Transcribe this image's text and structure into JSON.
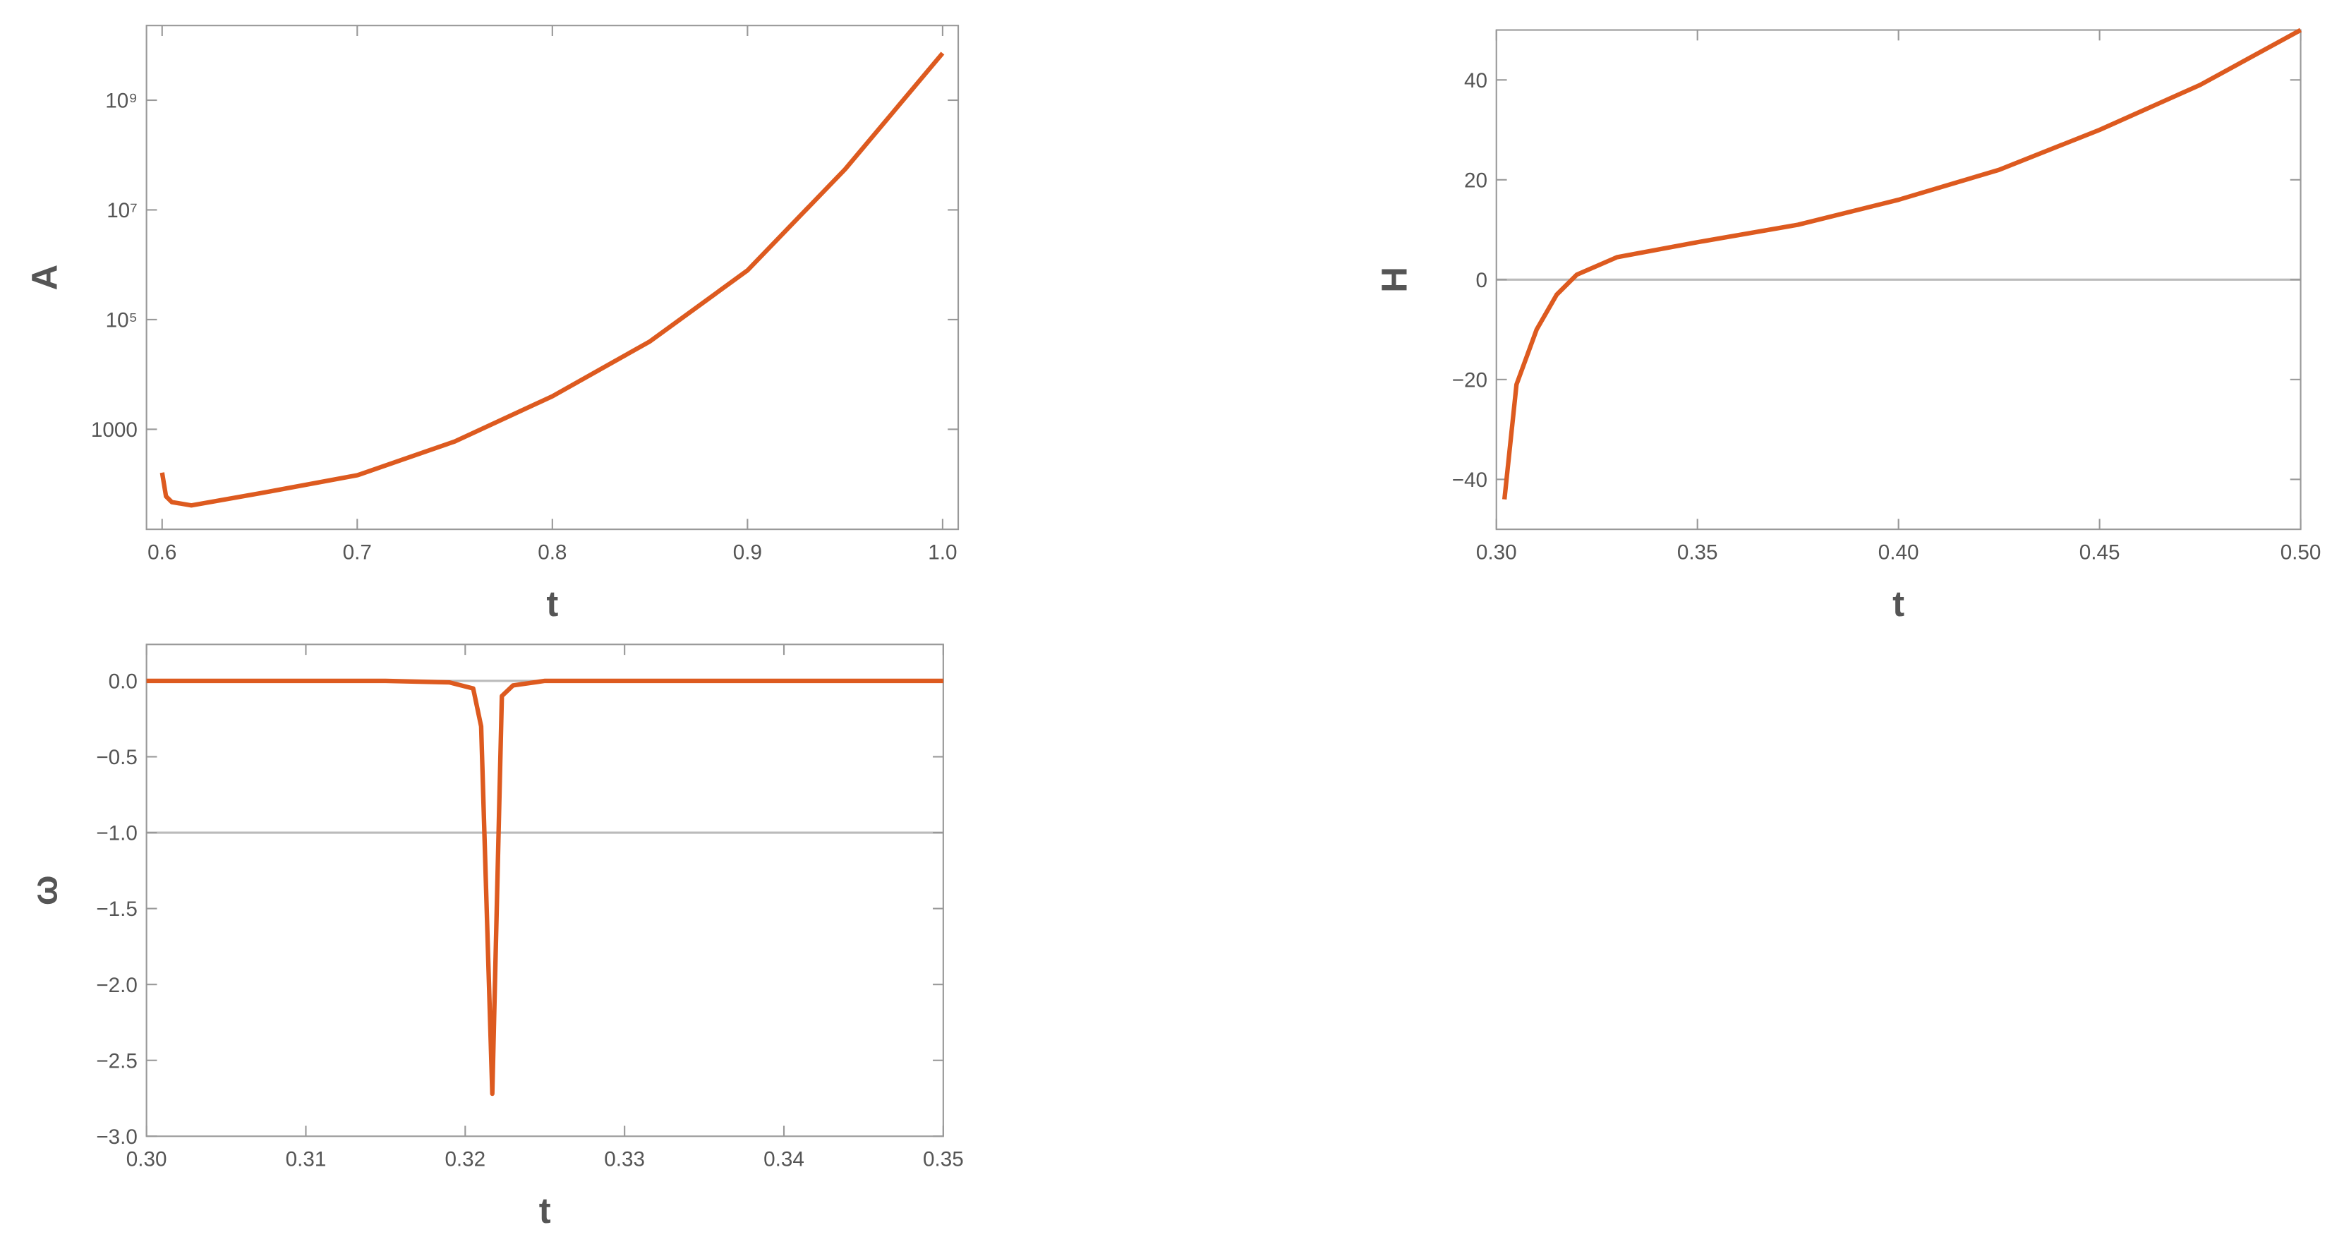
{
  "chart_data": [
    {
      "type": "line",
      "ylabel": "A",
      "xlabel": "t",
      "log_y": true,
      "color": "#dd5a1f",
      "xlim": [
        0.592,
        1.008
      ],
      "ylim": [
        15,
        23000000000
      ],
      "xticks": [
        {
          "value": 0.6,
          "label": "0.6"
        },
        {
          "value": 0.7,
          "label": "0.7"
        },
        {
          "value": 0.8,
          "label": "0.8"
        },
        {
          "value": 0.9,
          "label": "0.9"
        },
        {
          "value": 1.0,
          "label": "1.0"
        }
      ],
      "yticks": [
        1000,
        {
          "value": 100000,
          "label": "10⁵"
        },
        {
          "value": 10000000,
          "label": "10⁷"
        },
        {
          "value": 1000000000,
          "label": "10⁹"
        }
      ],
      "reference_lines": [],
      "x": [
        0.6,
        0.602,
        0.605,
        0.615,
        0.65,
        0.7,
        0.75,
        0.8,
        0.85,
        0.9,
        0.95,
        1.0
      ],
      "values": [
        162,
        60,
        47,
        41,
        68,
        145,
        600,
        4000,
        40000,
        790000,
        55000000,
        7200000000
      ]
    },
    {
      "type": "line",
      "ylabel": "H",
      "xlabel": "t",
      "log_y": false,
      "color": "#dd5a1f",
      "xlim": [
        0.3,
        0.5
      ],
      "ylim": [
        -50,
        50
      ],
      "xticks": [
        {
          "value": 0.3,
          "label": "0.30"
        },
        {
          "value": 0.35,
          "label": "0.35"
        },
        {
          "value": 0.4,
          "label": "0.40"
        },
        {
          "value": 0.45,
          "label": "0.45"
        },
        {
          "value": 0.5,
          "label": "0.50"
        }
      ],
      "yticks": [
        {
          "value": -40,
          "label": "−40"
        },
        {
          "value": -20,
          "label": "−20"
        },
        0,
        20,
        40
      ],
      "reference_lines": [
        0
      ],
      "x": [
        0.302,
        0.305,
        0.31,
        0.315,
        0.32,
        0.33,
        0.35,
        0.375,
        0.4,
        0.425,
        0.45,
        0.475,
        0.5
      ],
      "values": [
        -44,
        -21,
        -10,
        -3,
        1,
        4.5,
        7.5,
        11,
        16,
        22,
        30,
        39,
        50
      ]
    },
    {
      "type": "line",
      "ylabel": "ω",
      "xlabel": "t",
      "log_y": false,
      "color": "#dd5a1f",
      "xlim": [
        0.3,
        0.35
      ],
      "ylim": [
        -3,
        0.24
      ],
      "xticks": [
        {
          "value": 0.3,
          "label": "0.30"
        },
        {
          "value": 0.31,
          "label": "0.31"
        },
        {
          "value": 0.32,
          "label": "0.32"
        },
        {
          "value": 0.33,
          "label": "0.33"
        },
        {
          "value": 0.34,
          "label": "0.34"
        },
        {
          "value": 0.35,
          "label": "0.35"
        }
      ],
      "yticks": [
        {
          "value": 0,
          "label": "0.0"
        },
        {
          "value": -0.5,
          "label": "−0.5"
        },
        {
          "value": -1,
          "label": "−1.0"
        },
        {
          "value": -1.5,
          "label": "−1.5"
        },
        {
          "value": -2,
          "label": "−2.0"
        },
        {
          "value": -2.5,
          "label": "−2.5"
        },
        {
          "value": -3,
          "label": "−3.0"
        }
      ],
      "reference_lines": [
        0,
        -1
      ],
      "x": [
        0.3,
        0.315,
        0.319,
        0.3205,
        0.321,
        0.3217,
        0.3223,
        0.323,
        0.325,
        0.35
      ],
      "values": [
        0,
        0,
        -0.01,
        -0.05,
        -0.3,
        -2.72,
        -0.1,
        -0.03,
        0,
        0
      ]
    }
  ]
}
